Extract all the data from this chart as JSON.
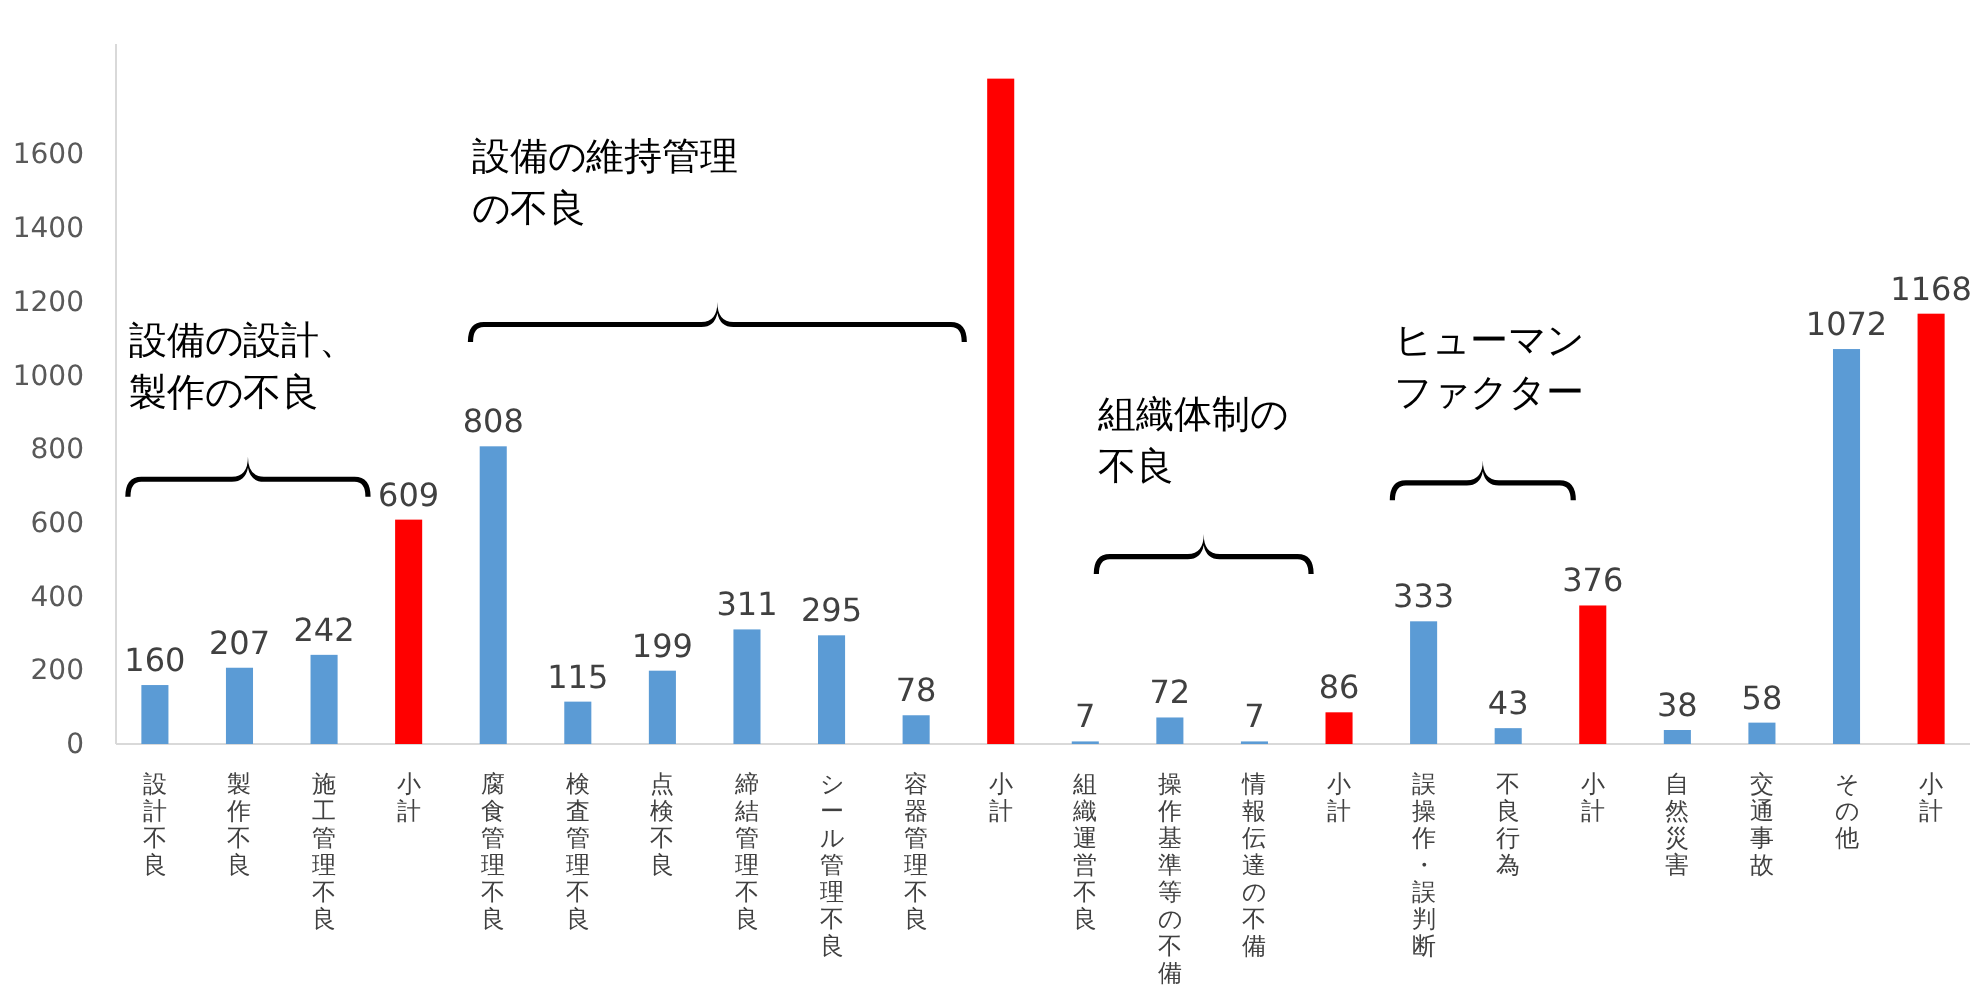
{
  "chart_data": {
    "type": "bar",
    "categories": [
      "設計不良",
      "製作不良",
      "施工管理不良",
      "小計",
      "腐食管理不良",
      "検査管理不良",
      "点検不良",
      "締結管理不良",
      "シール管理不良",
      "容器管理不良",
      "小計",
      "組織運営不良",
      "操作基準等の不備",
      "情報伝達の不備",
      "小計",
      "誤操作・誤判断",
      "不良行為",
      "小計",
      "自然災害",
      "交通事故",
      "その他",
      "小計"
    ],
    "values": [
      160,
      207,
      242,
      609,
      808,
      115,
      199,
      311,
      295,
      78,
      1806,
      7,
      72,
      7,
      86,
      333,
      43,
      376,
      38,
      58,
      1072,
      1168
    ],
    "colors": [
      "#5b9bd5",
      "#5b9bd5",
      "#5b9bd5",
      "#ff0000",
      "#5b9bd5",
      "#5b9bd5",
      "#5b9bd5",
      "#5b9bd5",
      "#5b9bd5",
      "#5b9bd5",
      "#ff0000",
      "#5b9bd5",
      "#5b9bd5",
      "#5b9bd5",
      "#ff0000",
      "#5b9bd5",
      "#5b9bd5",
      "#ff0000",
      "#5b9bd5",
      "#5b9bd5",
      "#5b9bd5",
      "#ff0000"
    ],
    "value_labels": [
      "160",
      "207",
      "242",
      "609",
      "808",
      "115",
      "199",
      "311",
      "295",
      "78",
      null,
      "7",
      "72",
      "7",
      "86",
      "333",
      "43",
      "376",
      "38",
      "58",
      "1072",
      "1168"
    ],
    "ylim": [
      0,
      1900
    ],
    "yticks": [
      0,
      200,
      400,
      600,
      800,
      1000,
      1200,
      1400,
      1600
    ],
    "grid": false,
    "annotations": [
      "設備の設計、製作の不良",
      "設備の維持管理の不良",
      "組織体制の不良",
      "ヒューマンファクター"
    ]
  }
}
